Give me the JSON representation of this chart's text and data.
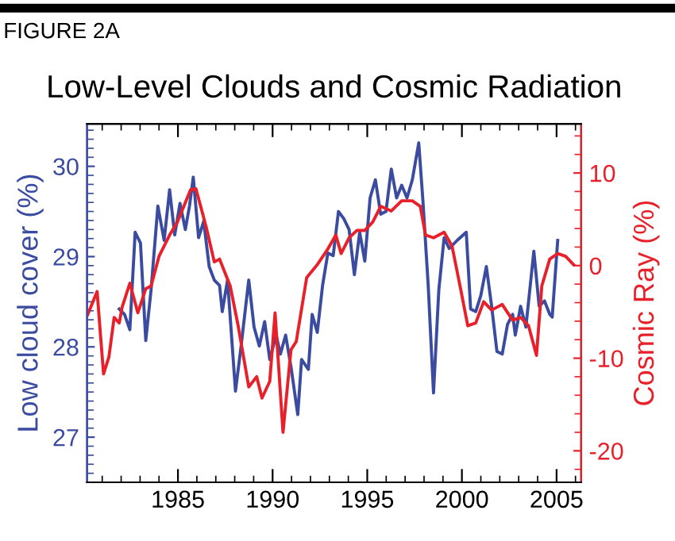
{
  "chart_data": {
    "type": "line",
    "title": "Low-Level Clouds and Cosmic Radiation",
    "ylabel": "Low cloud cover (%)",
    "y2label": "Cosmic Ray (%)",
    "annotations": [
      "FIGURE 2A"
    ],
    "xlim": [
      1980.2,
      2006.3
    ],
    "xticks": [
      1985,
      1990,
      1995,
      2000,
      2005
    ],
    "ylim": [
      26.5,
      30.47
    ],
    "yticks": [
      27,
      28,
      29,
      30
    ],
    "y2lim": [
      -23.4,
      15.3
    ],
    "y2ticks": [
      -20,
      -10,
      0,
      10
    ],
    "series": [
      {
        "color": "#3a4ba0",
        "x": [
          1981.9,
          1982.18,
          1982.46,
          1982.74,
          1983.02,
          1983.3,
          1983.58,
          1983.94,
          1984.27,
          1984.56,
          1984.83,
          1985.11,
          1985.39,
          1985.61,
          1985.81,
          1986.09,
          1986.36,
          1986.65,
          1986.92,
          1987.2,
          1987.34,
          1987.62,
          1988.04,
          1988.32,
          1988.74,
          1989.02,
          1989.3,
          1989.58,
          1989.85,
          1990.19,
          1990.41,
          1990.69,
          1990.97,
          1991.33,
          1991.53,
          1991.89,
          1992.09,
          1992.36,
          1992.64,
          1992.92,
          1993.2,
          1993.48,
          1993.76,
          1994.04,
          1994.32,
          1994.6,
          1994.87,
          1995.15,
          1995.43,
          1995.71,
          1995.99,
          1996.27,
          1996.55,
          1996.82,
          1997.1,
          1997.38,
          1997.72,
          1997.94,
          1998.22,
          1998.5,
          1998.78,
          1999.06,
          1999.33,
          1999.75,
          2000.23,
          2000.46,
          2000.73,
          2001.0,
          2001.29,
          2001.57,
          2001.85,
          2002.13,
          2002.41,
          2002.68,
          2002.82,
          2003.1,
          2003.38,
          2003.8,
          2004.08,
          2004.36,
          2004.64,
          2004.77,
          2005.06
        ],
        "values": [
          28.42,
          28.36,
          28.19,
          29.27,
          29.15,
          28.07,
          28.63,
          29.56,
          29.18,
          29.74,
          29.24,
          29.59,
          29.3,
          29.56,
          29.88,
          29.21,
          29.39,
          28.89,
          28.74,
          28.68,
          28.39,
          28.74,
          27.51,
          27.98,
          28.74,
          28.22,
          28.01,
          28.28,
          27.86,
          28.13,
          27.92,
          28.13,
          27.78,
          27.25,
          27.86,
          27.75,
          28.36,
          28.16,
          28.68,
          29.04,
          29.01,
          29.5,
          29.42,
          29.3,
          28.8,
          29.27,
          28.95,
          29.65,
          29.85,
          29.47,
          29.5,
          29.97,
          29.65,
          29.79,
          29.65,
          29.85,
          30.26,
          29.62,
          28.68,
          27.49,
          28.63,
          29.21,
          29.09,
          29.18,
          29.27,
          28.42,
          28.39,
          28.57,
          28.89,
          28.45,
          27.95,
          27.92,
          28.25,
          28.36,
          28.13,
          28.45,
          28.22,
          29.06,
          28.45,
          28.51,
          28.36,
          28.33,
          29.18
        ]
      },
      {
        "color": "#e8202a",
        "axis": "y2",
        "x": [
          1980.23,
          1980.73,
          1981.07,
          1981.35,
          1981.63,
          1981.9,
          1982.05,
          1982.46,
          1982.88,
          1983.3,
          1983.58,
          1984.0,
          1984.56,
          1984.97,
          1985.67,
          1985.95,
          1986.5,
          1986.92,
          1987.2,
          1987.76,
          1988.18,
          1988.74,
          1989.16,
          1989.44,
          1989.85,
          1990.13,
          1990.55,
          1990.97,
          1991.25,
          1991.8,
          1992.36,
          1992.92,
          1993.34,
          1993.62,
          1994.04,
          1994.46,
          1994.87,
          1995.29,
          1995.71,
          1996.27,
          1996.82,
          1997.38,
          1997.8,
          1998.08,
          1998.5,
          1999.06,
          1999.48,
          1999.9,
          2000.31,
          2000.73,
          2001.15,
          2001.57,
          2002.13,
          2002.68,
          2003.1,
          2003.52,
          2003.94,
          2004.22,
          2004.64,
          2005.06,
          2005.48,
          2005.9
        ],
        "values": [
          -5.3,
          -2.8,
          -11.7,
          -9.9,
          -5.6,
          -6.2,
          -4.5,
          -1.9,
          -5.1,
          -2.5,
          -2.2,
          1.0,
          3.3,
          4.7,
          8.2,
          8.3,
          4.1,
          0.4,
          0.7,
          -2.2,
          -6.5,
          -13.1,
          -12.0,
          -14.3,
          -12.5,
          -5.1,
          -18.0,
          -9.1,
          -8.2,
          -1.3,
          0.1,
          1.8,
          3.3,
          1.3,
          3.0,
          3.8,
          3.8,
          4.7,
          6.4,
          5.9,
          7.0,
          7.0,
          6.4,
          3.3,
          3.0,
          3.6,
          2.1,
          -2.2,
          -6.5,
          -6.2,
          -3.9,
          -4.8,
          -4.2,
          -5.9,
          -5.6,
          -6.5,
          -9.7,
          -2.2,
          0.7,
          1.3,
          1.0,
          0.1
        ]
      }
    ]
  }
}
